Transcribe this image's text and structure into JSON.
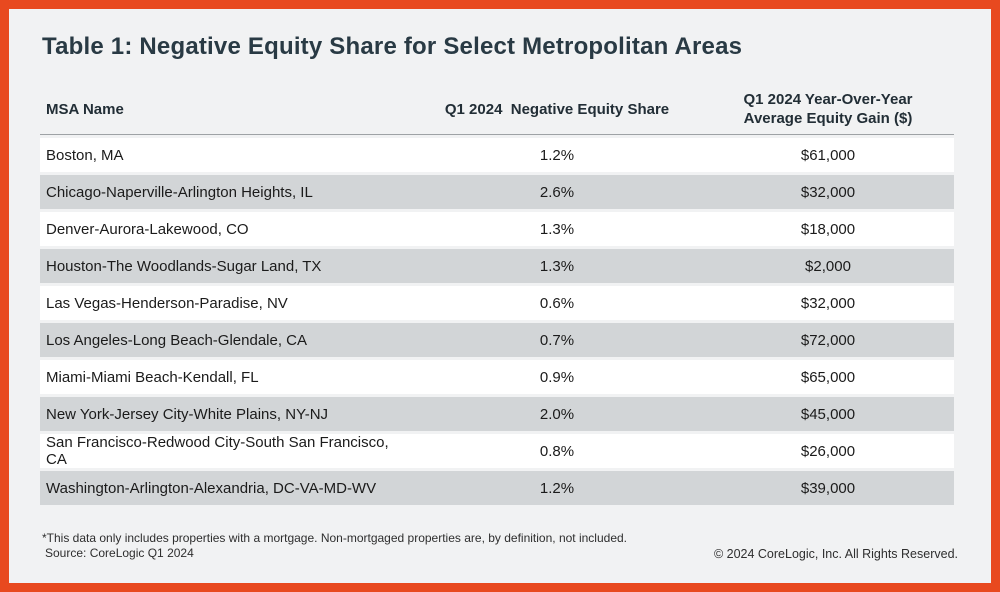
{
  "page": {
    "title": "Table 1: Negative Equity Share for Select Metropolitan Areas",
    "border_color": "#E8491F",
    "background_color": "#F1F2F3",
    "title_color": "#293A44",
    "row_stripe_color": "#D2D5D7",
    "row_base_color": "#FFFFFF"
  },
  "table": {
    "headers": {
      "msa": "MSA Name",
      "share": "Q1 2024  Negative Equity Share",
      "gain_line1": "Q1 2024 Year-Over-Year",
      "gain_line2": "Average Equity Gain ($)"
    },
    "rows": [
      {
        "msa": "Boston, MA",
        "share": "1.2%",
        "gain": "$61,000"
      },
      {
        "msa": "Chicago-Naperville-Arlington Heights, IL",
        "share": "2.6%",
        "gain": "$32,000"
      },
      {
        "msa": "Denver-Aurora-Lakewood, CO",
        "share": "1.3%",
        "gain": "$18,000"
      },
      {
        "msa": "Houston-The Woodlands-Sugar Land, TX",
        "share": "1.3%",
        "gain": "$2,000"
      },
      {
        "msa": "Las Vegas-Henderson-Paradise, NV",
        "share": "0.6%",
        "gain": "$32,000"
      },
      {
        "msa": "Los Angeles-Long Beach-Glendale, CA",
        "share": "0.7%",
        "gain": "$72,000"
      },
      {
        "msa": "Miami-Miami Beach-Kendall, FL",
        "share": "0.9%",
        "gain": "$65,000"
      },
      {
        "msa": "New York-Jersey City-White Plains, NY-NJ",
        "share": "2.0%",
        "gain": "$45,000"
      },
      {
        "msa": "San Francisco-Redwood City-South San Francisco, CA",
        "share": "0.8%",
        "gain": "$26,000"
      },
      {
        "msa": "Washington-Arlington-Alexandria, DC-VA-MD-WV",
        "share": "1.2%",
        "gain": "$39,000"
      }
    ]
  },
  "footer": {
    "note": "*This data only includes properties with a mortgage. Non-mortgaged properties are, by definition, not included.",
    "source": "Source: CoreLogic Q1 2024",
    "copyright": "© 2024 CoreLogic, Inc. All Rights Reserved."
  },
  "chart_data": {
    "type": "table",
    "title": "Table 1: Negative Equity Share for Select Metropolitan Areas",
    "columns": [
      "MSA Name",
      "Q1 2024 Negative Equity Share",
      "Q1 2024 Year-Over-Year Average Equity Gain ($)"
    ],
    "rows": [
      [
        "Boston, MA",
        "1.2%",
        "$61,000"
      ],
      [
        "Chicago-Naperville-Arlington Heights, IL",
        "2.6%",
        "$32,000"
      ],
      [
        "Denver-Aurora-Lakewood, CO",
        "1.3%",
        "$18,000"
      ],
      [
        "Houston-The Woodlands-Sugar Land, TX",
        "1.3%",
        "$2,000"
      ],
      [
        "Las Vegas-Henderson-Paradise, NV",
        "0.6%",
        "$32,000"
      ],
      [
        "Los Angeles-Long Beach-Glendale, CA",
        "0.7%",
        "$72,000"
      ],
      [
        "Miami-Miami Beach-Kendall, FL",
        "0.9%",
        "$65,000"
      ],
      [
        "New York-Jersey City-White Plains, NY-NJ",
        "2.0%",
        "$45,000"
      ],
      [
        "San Francisco-Redwood City-South San Francisco, CA",
        "0.8%",
        "$26,000"
      ],
      [
        "Washington-Arlington-Alexandria, DC-VA-MD-WV",
        "1.2%",
        "$39,000"
      ]
    ],
    "negative_equity_share_pct": [
      1.2,
      2.6,
      1.3,
      1.3,
      0.6,
      0.7,
      0.9,
      2.0,
      0.8,
      1.2
    ],
    "avg_equity_gain_usd": [
      61000,
      32000,
      18000,
      2000,
      32000,
      72000,
      65000,
      45000,
      26000,
      39000
    ],
    "footnote": "*This data only includes properties with a mortgage. Non-mortgaged properties are, by definition, not included.",
    "source": "Source: CoreLogic Q1 2024"
  }
}
